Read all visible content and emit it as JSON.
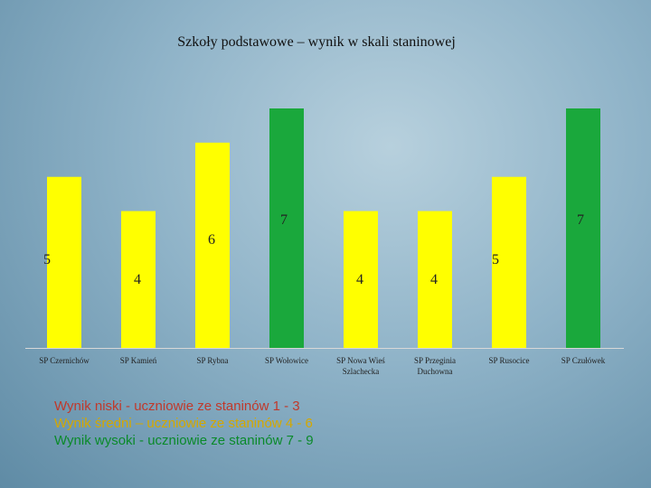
{
  "chart_data": {
    "type": "bar",
    "title": "Szkoły podstawowe – wynik w skali staninowej",
    "categories": [
      [
        "SP Czernichów"
      ],
      [
        "SP Kamień"
      ],
      [
        "SP Rybna"
      ],
      [
        "SP Wołowice"
      ],
      [
        "SP Nowa Wieś",
        "Szlachecka"
      ],
      [
        "SP Przeginia",
        "Duchowna"
      ],
      [
        "SP Rusocice"
      ],
      [
        "SP Czułówek"
      ]
    ],
    "values": [
      5,
      4,
      6,
      7,
      4,
      4,
      5,
      7
    ],
    "ylim": [
      0,
      7
    ],
    "grid": false,
    "colors": {
      "niski": "#c0392b",
      "sredni": "#ffff00",
      "wysoki": "#1aa83c"
    },
    "legend": [
      {
        "text": "Wynik niski - uczniowie ze staninów 1 - 3",
        "color": "#c0392b"
      },
      {
        "text": "Wynik średni – uczniowie ze staninów 4 - 6",
        "color": "#d4a800"
      },
      {
        "text": "Wynik wysoki - uczniowie ze staninów 7 - 9",
        "color": "#0a8a2a"
      }
    ]
  }
}
